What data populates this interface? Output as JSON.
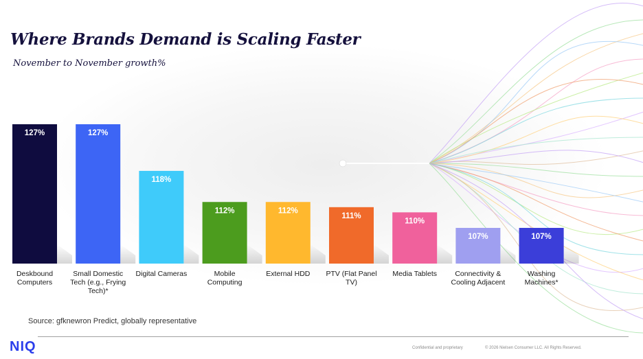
{
  "header": {
    "title": "Where Brands Demand is Scaling Faster",
    "subtitle": "November to November growth%"
  },
  "chart_data": {
    "type": "bar",
    "categories": [
      "Deskbound Computers",
      "Small Domestic Tech (e.g., Frying Tech)*",
      "Digital Cameras",
      "Mobile Computing",
      "External HDD",
      "PTV (Flat Panel TV)",
      "Media Tablets",
      "Connectivity & Cooling Adjacent",
      "Washing Machines*"
    ],
    "category_lines": [
      [
        "Deskbound",
        "Computers"
      ],
      [
        "Small Domestic",
        "Tech (e.g., Frying",
        "Tech)*"
      ],
      [
        "Digital Cameras"
      ],
      [
        "Mobile",
        "Computing"
      ],
      [
        "External HDD"
      ],
      [
        "PTV (Flat Panel",
        "TV)"
      ],
      [
        "Media Tablets"
      ],
      [
        "Connectivity &",
        "Cooling Adjacent"
      ],
      [
        "Washing",
        "Machines*"
      ]
    ],
    "values": [
      127,
      127,
      118,
      112,
      112,
      111,
      110,
      107,
      107
    ],
    "value_labels": [
      "127%",
      "127%",
      "118%",
      "112%",
      "112%",
      "111%",
      "110%",
      "107%",
      "107%"
    ],
    "colors": [
      "#0f0c3f",
      "#3d65f5",
      "#3fcbfa",
      "#4c9c1e",
      "#ffb82e",
      "#f06a2a",
      "#f0619c",
      "#9f9ff0",
      "#3b3ed9"
    ],
    "ylabel": "",
    "xlabel": "",
    "grid": false,
    "legend": "none"
  },
  "source": {
    "text": "Source: gfknewron Predict, globally representative"
  },
  "footer": {
    "logo": "NIQ",
    "confidential": "Confidential and proprietary",
    "copyright": "© 2026 Nielsen Consumer LLC. All Rights Reserved."
  },
  "theme": {
    "title_color": "#15113d",
    "brand_color": "#2b3eeb"
  }
}
